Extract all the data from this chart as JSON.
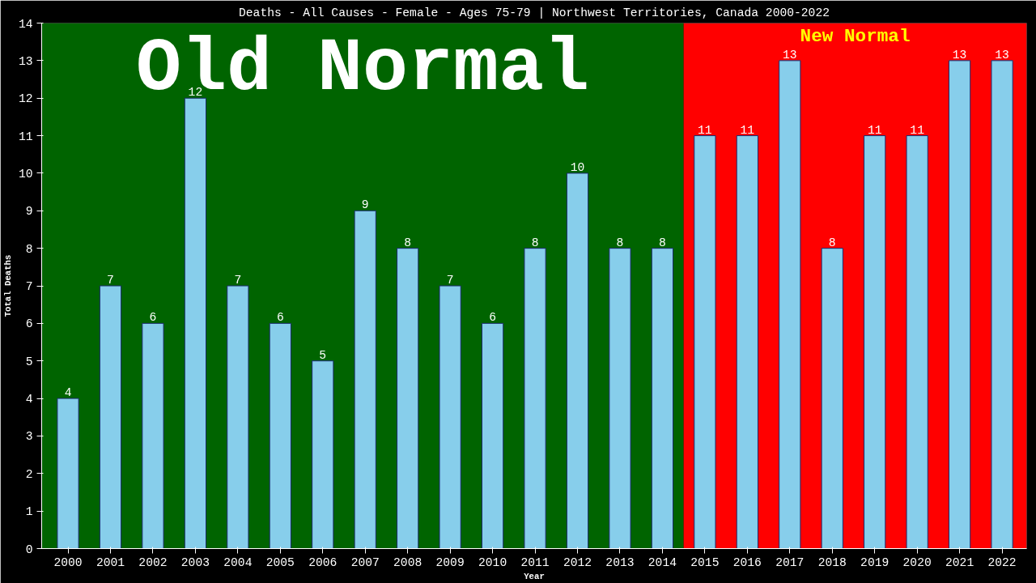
{
  "chart_data": {
    "type": "bar",
    "title": "Deaths - All Causes - Female - Ages 75-79 | Northwest Territories, Canada 2000-2022",
    "xlabel": "Year",
    "ylabel": "Total Deaths",
    "categories": [
      "2000",
      "2001",
      "2002",
      "2003",
      "2004",
      "2005",
      "2006",
      "2007",
      "2008",
      "2009",
      "2010",
      "2011",
      "2012",
      "2013",
      "2014",
      "2015",
      "2016",
      "2017",
      "2018",
      "2019",
      "2020",
      "2021",
      "2022"
    ],
    "values": [
      4,
      7,
      6,
      12,
      7,
      6,
      5,
      9,
      8,
      7,
      6,
      8,
      10,
      8,
      8,
      11,
      11,
      13,
      8,
      11,
      11,
      13,
      13
    ],
    "color": "#87ceeb",
    "data_labels": true,
    "ylim": [
      0,
      14
    ],
    "yticks": [
      0,
      1,
      2,
      3,
      4,
      5,
      6,
      7,
      8,
      9,
      10,
      11,
      12,
      13,
      14
    ],
    "grid": false,
    "bands": [
      {
        "axis": "x",
        "from": "2000",
        "to": "2014",
        "label": "Old Normal",
        "color": "#006400"
      },
      {
        "axis": "x",
        "from": "2015",
        "to": "2022",
        "label": "New Normal",
        "color": "#ff0000"
      }
    ]
  }
}
